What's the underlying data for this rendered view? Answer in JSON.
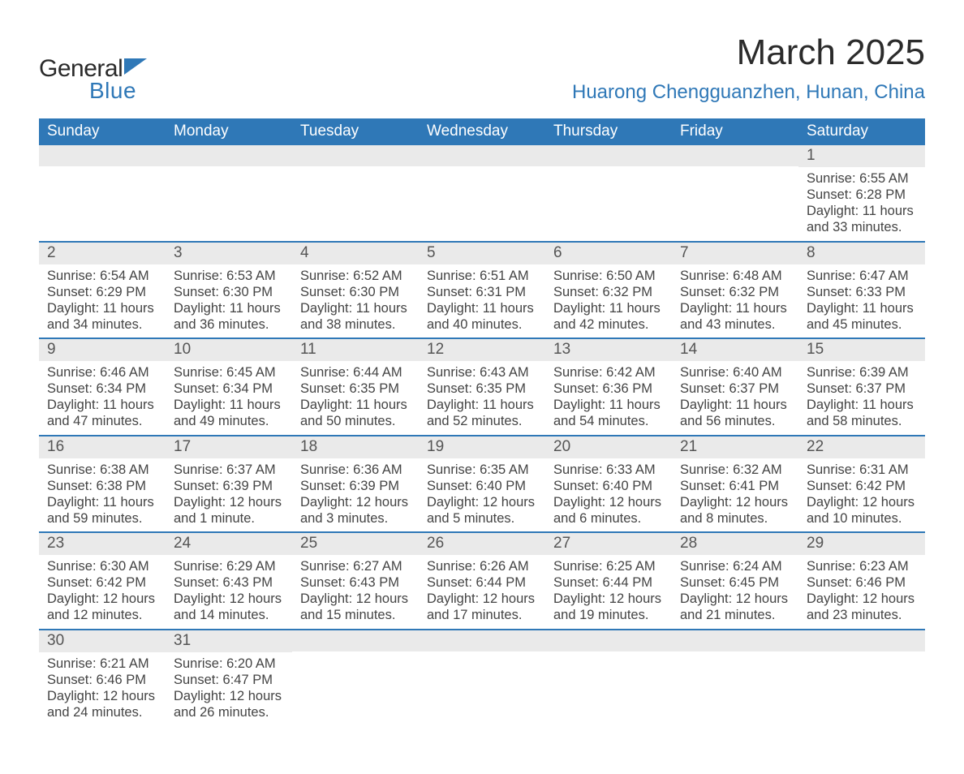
{
  "brand": {
    "name_part1": "General",
    "name_part2": "Blue",
    "triangle_color": "#2f78b7"
  },
  "title": {
    "month": "March 2025",
    "location": "Huarong Chengguanzhen, Hunan, China"
  },
  "colors": {
    "header_bg": "#2f78b7",
    "header_text": "#ffffff",
    "daynum_bg": "#eaeaea",
    "body_text": "#444444",
    "row_border": "#2f78b7",
    "background": "#ffffff"
  },
  "layout": {
    "columns": 7,
    "rows": 6,
    "cell_fontsize_pt": 12,
    "header_fontsize_pt": 14,
    "title_fontsize_pt": 33,
    "location_fontsize_pt": 18
  },
  "weekdays": [
    "Sunday",
    "Monday",
    "Tuesday",
    "Wednesday",
    "Thursday",
    "Friday",
    "Saturday"
  ],
  "weeks": [
    [
      {
        "empty": true
      },
      {
        "empty": true
      },
      {
        "empty": true
      },
      {
        "empty": true
      },
      {
        "empty": true
      },
      {
        "empty": true
      },
      {
        "day": "1",
        "sunrise": "Sunrise: 6:55 AM",
        "sunset": "Sunset: 6:28 PM",
        "daylight1": "Daylight: 11 hours",
        "daylight2": "and 33 minutes."
      }
    ],
    [
      {
        "day": "2",
        "sunrise": "Sunrise: 6:54 AM",
        "sunset": "Sunset: 6:29 PM",
        "daylight1": "Daylight: 11 hours",
        "daylight2": "and 34 minutes."
      },
      {
        "day": "3",
        "sunrise": "Sunrise: 6:53 AM",
        "sunset": "Sunset: 6:30 PM",
        "daylight1": "Daylight: 11 hours",
        "daylight2": "and 36 minutes."
      },
      {
        "day": "4",
        "sunrise": "Sunrise: 6:52 AM",
        "sunset": "Sunset: 6:30 PM",
        "daylight1": "Daylight: 11 hours",
        "daylight2": "and 38 minutes."
      },
      {
        "day": "5",
        "sunrise": "Sunrise: 6:51 AM",
        "sunset": "Sunset: 6:31 PM",
        "daylight1": "Daylight: 11 hours",
        "daylight2": "and 40 minutes."
      },
      {
        "day": "6",
        "sunrise": "Sunrise: 6:50 AM",
        "sunset": "Sunset: 6:32 PM",
        "daylight1": "Daylight: 11 hours",
        "daylight2": "and 42 minutes."
      },
      {
        "day": "7",
        "sunrise": "Sunrise: 6:48 AM",
        "sunset": "Sunset: 6:32 PM",
        "daylight1": "Daylight: 11 hours",
        "daylight2": "and 43 minutes."
      },
      {
        "day": "8",
        "sunrise": "Sunrise: 6:47 AM",
        "sunset": "Sunset: 6:33 PM",
        "daylight1": "Daylight: 11 hours",
        "daylight2": "and 45 minutes."
      }
    ],
    [
      {
        "day": "9",
        "sunrise": "Sunrise: 6:46 AM",
        "sunset": "Sunset: 6:34 PM",
        "daylight1": "Daylight: 11 hours",
        "daylight2": "and 47 minutes."
      },
      {
        "day": "10",
        "sunrise": "Sunrise: 6:45 AM",
        "sunset": "Sunset: 6:34 PM",
        "daylight1": "Daylight: 11 hours",
        "daylight2": "and 49 minutes."
      },
      {
        "day": "11",
        "sunrise": "Sunrise: 6:44 AM",
        "sunset": "Sunset: 6:35 PM",
        "daylight1": "Daylight: 11 hours",
        "daylight2": "and 50 minutes."
      },
      {
        "day": "12",
        "sunrise": "Sunrise: 6:43 AM",
        "sunset": "Sunset: 6:35 PM",
        "daylight1": "Daylight: 11 hours",
        "daylight2": "and 52 minutes."
      },
      {
        "day": "13",
        "sunrise": "Sunrise: 6:42 AM",
        "sunset": "Sunset: 6:36 PM",
        "daylight1": "Daylight: 11 hours",
        "daylight2": "and 54 minutes."
      },
      {
        "day": "14",
        "sunrise": "Sunrise: 6:40 AM",
        "sunset": "Sunset: 6:37 PM",
        "daylight1": "Daylight: 11 hours",
        "daylight2": "and 56 minutes."
      },
      {
        "day": "15",
        "sunrise": "Sunrise: 6:39 AM",
        "sunset": "Sunset: 6:37 PM",
        "daylight1": "Daylight: 11 hours",
        "daylight2": "and 58 minutes."
      }
    ],
    [
      {
        "day": "16",
        "sunrise": "Sunrise: 6:38 AM",
        "sunset": "Sunset: 6:38 PM",
        "daylight1": "Daylight: 11 hours",
        "daylight2": "and 59 minutes."
      },
      {
        "day": "17",
        "sunrise": "Sunrise: 6:37 AM",
        "sunset": "Sunset: 6:39 PM",
        "daylight1": "Daylight: 12 hours",
        "daylight2": "and 1 minute."
      },
      {
        "day": "18",
        "sunrise": "Sunrise: 6:36 AM",
        "sunset": "Sunset: 6:39 PM",
        "daylight1": "Daylight: 12 hours",
        "daylight2": "and 3 minutes."
      },
      {
        "day": "19",
        "sunrise": "Sunrise: 6:35 AM",
        "sunset": "Sunset: 6:40 PM",
        "daylight1": "Daylight: 12 hours",
        "daylight2": "and 5 minutes."
      },
      {
        "day": "20",
        "sunrise": "Sunrise: 6:33 AM",
        "sunset": "Sunset: 6:40 PM",
        "daylight1": "Daylight: 12 hours",
        "daylight2": "and 6 minutes."
      },
      {
        "day": "21",
        "sunrise": "Sunrise: 6:32 AM",
        "sunset": "Sunset: 6:41 PM",
        "daylight1": "Daylight: 12 hours",
        "daylight2": "and 8 minutes."
      },
      {
        "day": "22",
        "sunrise": "Sunrise: 6:31 AM",
        "sunset": "Sunset: 6:42 PM",
        "daylight1": "Daylight: 12 hours",
        "daylight2": "and 10 minutes."
      }
    ],
    [
      {
        "day": "23",
        "sunrise": "Sunrise: 6:30 AM",
        "sunset": "Sunset: 6:42 PM",
        "daylight1": "Daylight: 12 hours",
        "daylight2": "and 12 minutes."
      },
      {
        "day": "24",
        "sunrise": "Sunrise: 6:29 AM",
        "sunset": "Sunset: 6:43 PM",
        "daylight1": "Daylight: 12 hours",
        "daylight2": "and 14 minutes."
      },
      {
        "day": "25",
        "sunrise": "Sunrise: 6:27 AM",
        "sunset": "Sunset: 6:43 PM",
        "daylight1": "Daylight: 12 hours",
        "daylight2": "and 15 minutes."
      },
      {
        "day": "26",
        "sunrise": "Sunrise: 6:26 AM",
        "sunset": "Sunset: 6:44 PM",
        "daylight1": "Daylight: 12 hours",
        "daylight2": "and 17 minutes."
      },
      {
        "day": "27",
        "sunrise": "Sunrise: 6:25 AM",
        "sunset": "Sunset: 6:44 PM",
        "daylight1": "Daylight: 12 hours",
        "daylight2": "and 19 minutes."
      },
      {
        "day": "28",
        "sunrise": "Sunrise: 6:24 AM",
        "sunset": "Sunset: 6:45 PM",
        "daylight1": "Daylight: 12 hours",
        "daylight2": "and 21 minutes."
      },
      {
        "day": "29",
        "sunrise": "Sunrise: 6:23 AM",
        "sunset": "Sunset: 6:46 PM",
        "daylight1": "Daylight: 12 hours",
        "daylight2": "and 23 minutes."
      }
    ],
    [
      {
        "day": "30",
        "sunrise": "Sunrise: 6:21 AM",
        "sunset": "Sunset: 6:46 PM",
        "daylight1": "Daylight: 12 hours",
        "daylight2": "and 24 minutes."
      },
      {
        "day": "31",
        "sunrise": "Sunrise: 6:20 AM",
        "sunset": "Sunset: 6:47 PM",
        "daylight1": "Daylight: 12 hours",
        "daylight2": "and 26 minutes."
      },
      {
        "empty": true
      },
      {
        "empty": true
      },
      {
        "empty": true
      },
      {
        "empty": true
      },
      {
        "empty": true
      }
    ]
  ]
}
